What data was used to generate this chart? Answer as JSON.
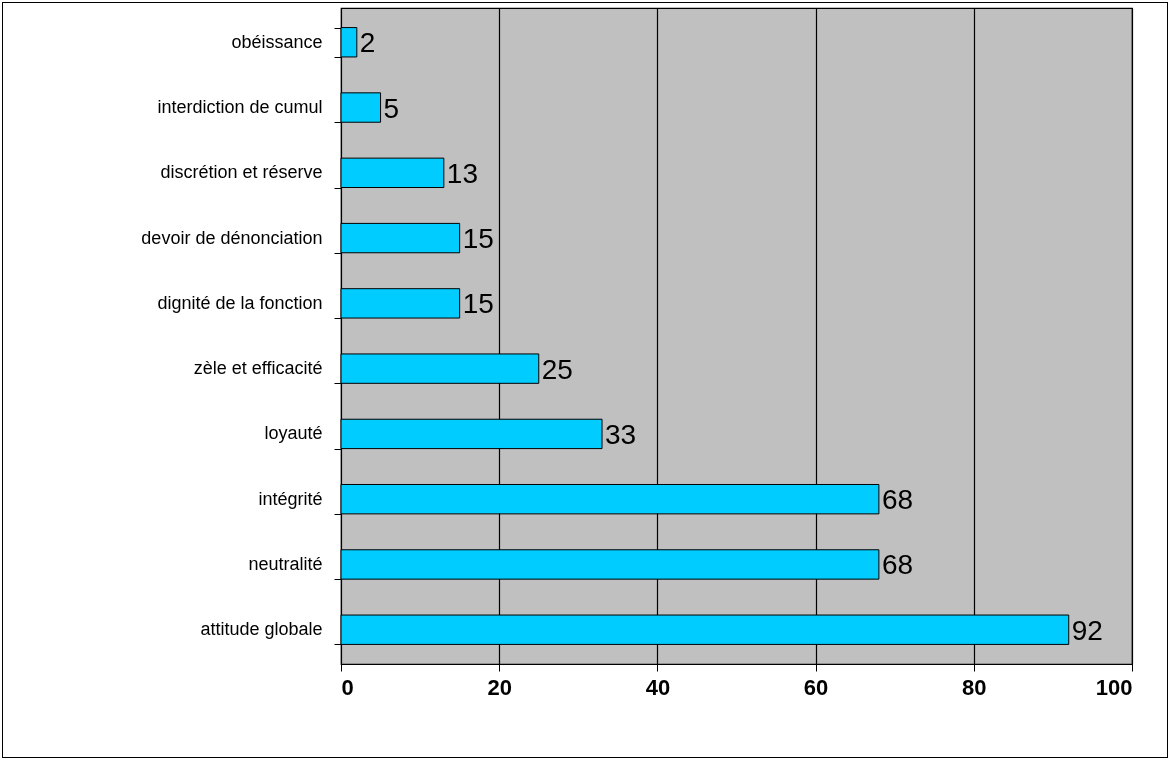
{
  "chart_data": {
    "type": "bar",
    "orientation": "horizontal",
    "categories": [
      "obéissance",
      "interdiction de cumul",
      "discrétion et réserve",
      "devoir de dénonciation",
      "dignité de la fonction",
      "zèle et efficacité",
      "loyauté",
      "intégrité",
      "neutralité",
      "attitude globale"
    ],
    "values": [
      2,
      5,
      13,
      15,
      15,
      25,
      33,
      68,
      68,
      92
    ],
    "color": "#00ccff",
    "xlim": [
      0,
      100
    ],
    "xticks": [
      0,
      20,
      40,
      60,
      80,
      100
    ],
    "grid": "x",
    "data_labels": true
  }
}
